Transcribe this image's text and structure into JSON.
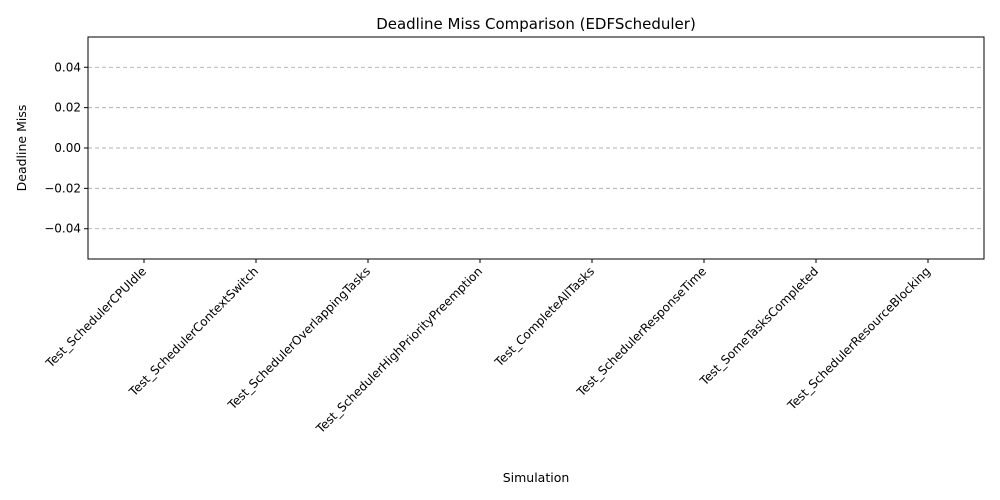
{
  "chart_data": {
    "type": "bar",
    "title": "Deadline Miss Comparison (EDFScheduler)",
    "xlabel": "Simulation",
    "ylabel": "Deadline Miss",
    "categories": [
      "Test_SchedulerCPUIdle",
      "Test_SchedulerContextSwitch",
      "Test_SchedulerOverlappingTasks",
      "Test_SchedulerHighPriorityPreemption",
      "Test_CompleteAllTasks",
      "Test_SchedulerResponseTime",
      "Test_SomeTasksCompleted",
      "Test_SchedulerResourceBlocking"
    ],
    "values": [
      0,
      0,
      0,
      0,
      0,
      0,
      0,
      0
    ],
    "ylim": [
      -0.055,
      0.055
    ],
    "yticks": [
      -0.04,
      -0.02,
      0.0,
      0.02,
      0.04
    ],
    "ytick_labels": [
      "−0.04",
      "−0.02",
      "0.00",
      "0.02",
      "0.04"
    ],
    "grid": {
      "y": true,
      "x": false
    },
    "bar_color": "#1f77b4"
  }
}
